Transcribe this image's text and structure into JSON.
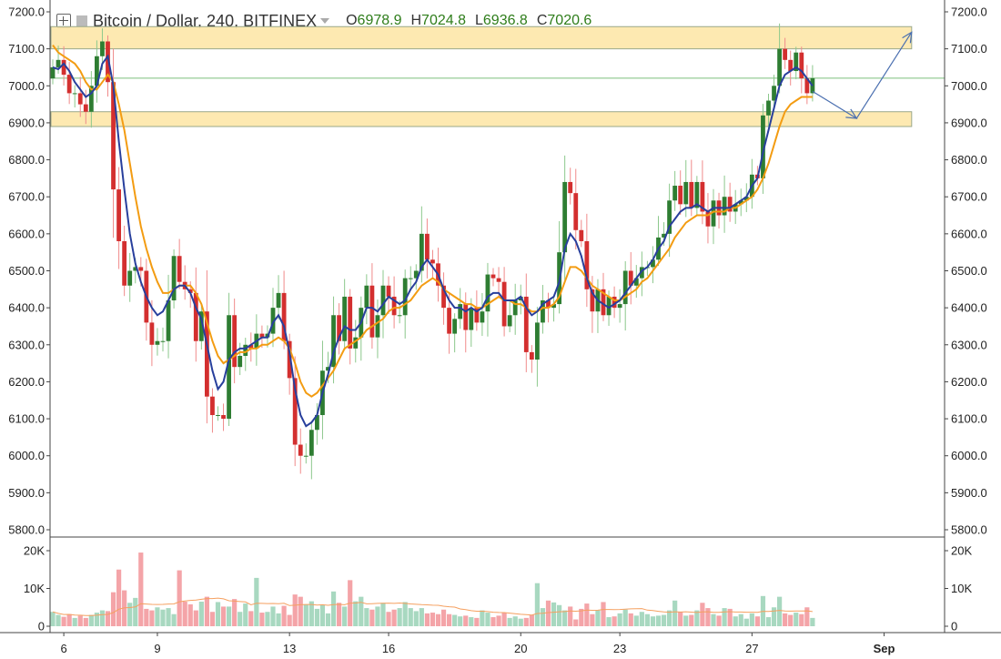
{
  "header": {
    "symbol_title": "Bitcoin / Dollar, 240, BITFINEX",
    "ohlc": [
      {
        "key": "O",
        "value": "6978.9"
      },
      {
        "key": "H",
        "value": "7024.8"
      },
      {
        "key": "L",
        "value": "6936.8"
      },
      {
        "key": "C",
        "value": "7020.6"
      }
    ]
  },
  "colors": {
    "up": "#2e7d32",
    "down": "#d32f2f",
    "ma_fast": "#283f9c",
    "ma_slow": "#f39c12",
    "zone_fill": "#fde7a8",
    "zone_stroke": "#9aa88a",
    "vol_up": "#a8d8c0",
    "vol_down": "#f4a4a8",
    "vol_ma": "#f5a060",
    "arrow": "#4a6fb0",
    "price_line": "#7cbf7c"
  },
  "chart_data": {
    "type": "candlestick",
    "x_tick_labels": [
      {
        "label": "6",
        "bar": 2
      },
      {
        "label": "9",
        "bar": 19
      },
      {
        "label": "13",
        "bar": 43
      },
      {
        "label": "16",
        "bar": 61
      },
      {
        "label": "20",
        "bar": 85
      },
      {
        "label": "23",
        "bar": 103
      },
      {
        "label": "27",
        "bar": 127
      },
      {
        "label": "Sep",
        "bar": 151
      }
    ],
    "price_axis": {
      "min": 5800,
      "max": 7200,
      "ticks": [
        "7200.0",
        "7100.0",
        "7000.0",
        "6900.0",
        "6800.0",
        "6700.0",
        "6600.0",
        "6500.0",
        "6400.0",
        "6300.0",
        "6200.0",
        "6100.0",
        "6000.0",
        "5900.0",
        "5800.0"
      ]
    },
    "volume_axis": {
      "max": 20000,
      "ticks": [
        {
          "label": "20K",
          "v": 20000
        },
        {
          "label": "10K",
          "v": 10000
        },
        {
          "label": "0",
          "v": 0
        }
      ]
    },
    "current_price": 7020.6,
    "zones": [
      {
        "from_bar": 0,
        "to_bar": 156,
        "low": 7100,
        "high": 7160
      },
      {
        "from_bar": 0,
        "to_bar": 156,
        "low": 6890,
        "high": 6930
      }
    ],
    "projection": [
      {
        "bar": 138,
        "price": 6985
      },
      {
        "bar": 146,
        "price": 6912
      },
      {
        "bar": 156,
        "price": 7145
      }
    ],
    "candles": {
      "open": [
        7020,
        7050,
        7070,
        7030,
        6980,
        6980,
        6950,
        6930,
        7000,
        7080,
        7120,
        7010,
        6720,
        6580,
        6460,
        6500,
        6510,
        6500,
        6360,
        6300,
        6310,
        6310,
        6420,
        6540,
        6470,
        6450,
        6440,
        6310,
        6390,
        6160,
        6110,
        6110,
        6100,
        6380,
        6240,
        6270,
        6300,
        6290,
        6330,
        6320,
        6330,
        6400,
        6440,
        6310,
        6210,
        6030,
        6000,
        6000,
        6070,
        6110,
        6230,
        6240,
        6380,
        6310,
        6430,
        6290,
        6320,
        6400,
        6460,
        6320,
        6380,
        6460,
        6430,
        6380,
        6380,
        6480,
        6480,
        6500,
        6600,
        6530,
        6520,
        6460,
        6400,
        6330,
        6370,
        6410,
        6340,
        6400,
        6360,
        6390,
        6490,
        6480,
        6470,
        6350,
        6380,
        6420,
        6430,
        6280,
        6260,
        6360,
        6420,
        6400,
        6410,
        6550,
        6740,
        6710,
        6610,
        6580,
        6450,
        6390,
        6450,
        6380,
        6430,
        6400,
        6410,
        6500,
        6460,
        6480,
        6510,
        6510,
        6530,
        6590,
        6600,
        6690,
        6730,
        6680,
        6740,
        6670,
        6740,
        6660,
        6620,
        6690,
        6650,
        6700,
        6660,
        6680,
        6690,
        6700,
        6760,
        6750,
        6920,
        6960,
        7000,
        7100,
        7070,
        7040,
        7090,
        7020,
        6980
      ],
      "close": [
        7050,
        7070,
        7030,
        6980,
        6980,
        6950,
        6930,
        7000,
        7080,
        7120,
        7010,
        6720,
        6580,
        6460,
        6500,
        6510,
        6500,
        6360,
        6300,
        6310,
        6310,
        6420,
        6540,
        6470,
        6450,
        6440,
        6310,
        6390,
        6160,
        6110,
        6110,
        6100,
        6380,
        6240,
        6270,
        6300,
        6290,
        6330,
        6320,
        6330,
        6400,
        6440,
        6310,
        6210,
        6030,
        6000,
        6000,
        6070,
        6110,
        6230,
        6240,
        6380,
        6310,
        6430,
        6290,
        6320,
        6400,
        6460,
        6320,
        6380,
        6460,
        6430,
        6380,
        6380,
        6480,
        6480,
        6500,
        6600,
        6530,
        6520,
        6460,
        6400,
        6330,
        6370,
        6410,
        6340,
        6400,
        6360,
        6390,
        6490,
        6480,
        6470,
        6350,
        6380,
        6420,
        6430,
        6280,
        6260,
        6360,
        6420,
        6400,
        6410,
        6550,
        6740,
        6710,
        6610,
        6580,
        6450,
        6390,
        6450,
        6380,
        6430,
        6400,
        6410,
        6500,
        6460,
        6480,
        6510,
        6510,
        6530,
        6590,
        6600,
        6690,
        6730,
        6680,
        6740,
        6670,
        6740,
        6660,
        6620,
        6690,
        6650,
        6700,
        6660,
        6680,
        6690,
        6700,
        6760,
        6750,
        6920,
        6960,
        7000,
        7100,
        7070,
        7040,
        7090,
        7020,
        6980,
        7020.6
      ]
    },
    "ma_fast": [
      7050,
      7045,
      7060,
      7040,
      7010,
      6990,
      6970,
      6980,
      7000,
      7060,
      7080,
      7000,
      6850,
      6720,
      6600,
      6520,
      6470,
      6430,
      6400,
      6380,
      6390,
      6420,
      6450,
      6460,
      6460,
      6440,
      6400,
      6370,
      6300,
      6230,
      6180,
      6200,
      6260,
      6280,
      6290,
      6290,
      6300,
      6310,
      6320,
      6320,
      6360,
      6380,
      6350,
      6280,
      6180,
      6110,
      6080,
      6090,
      6110,
      6170,
      6220,
      6280,
      6320,
      6350,
      6340,
      6340,
      6360,
      6400,
      6400,
      6390,
      6410,
      6430,
      6420,
      6410,
      6420,
      6450,
      6470,
      6510,
      6530,
      6510,
      6490,
      6450,
      6420,
      6400,
      6400,
      6390,
      6400,
      6390,
      6400,
      6430,
      6440,
      6440,
      6420,
      6420,
      6420,
      6430,
      6400,
      6380,
      6390,
      6410,
      6420,
      6430,
      6470,
      6560,
      6600,
      6580,
      6540,
      6480,
      6440,
      6420,
      6410,
      6400,
      6410,
      6420,
      6440,
      6460,
      6480,
      6500,
      6510,
      6530,
      6560,
      6580,
      6620,
      6640,
      6660,
      6670,
      6670,
      6680,
      6670,
      6660,
      6670,
      6670,
      6670,
      6670,
      6680,
      6690,
      6700,
      6730,
      6750,
      6820,
      6880,
      6940,
      7000,
      7030,
      7040,
      7050,
      7040,
      7020,
      7000
    ],
    "ma_slow": [
      7110,
      7090,
      7080,
      7070,
      7060,
      7040,
      7010,
      6990,
      6990,
      7010,
      7030,
      7010,
      6950,
      6880,
      6790,
      6700,
      6620,
      6560,
      6510,
      6470,
      6440,
      6440,
      6450,
      6460,
      6460,
      6460,
      6440,
      6410,
      6360,
      6310,
      6270,
      6250,
      6260,
      6270,
      6280,
      6280,
      6290,
      6290,
      6300,
      6300,
      6310,
      6320,
      6310,
      6290,
      6250,
      6200,
      6170,
      6160,
      6170,
      6190,
      6210,
      6230,
      6260,
      6290,
      6300,
      6310,
      6320,
      6340,
      6350,
      6360,
      6370,
      6390,
      6400,
      6400,
      6410,
      6420,
      6440,
      6460,
      6470,
      6480,
      6470,
      6450,
      6440,
      6430,
      6420,
      6410,
      6410,
      6400,
      6400,
      6410,
      6420,
      6430,
      6420,
      6420,
      6410,
      6410,
      6400,
      6390,
      6390,
      6400,
      6400,
      6410,
      6430,
      6470,
      6510,
      6510,
      6500,
      6480,
      6460,
      6450,
      6440,
      6430,
      6420,
      6420,
      6430,
      6440,
      6450,
      6470,
      6480,
      6500,
      6520,
      6540,
      6560,
      6590,
      6610,
      6630,
      6640,
      6650,
      6650,
      6650,
      6660,
      6660,
      6660,
      6670,
      6670,
      6680,
      6690,
      6700,
      6720,
      6750,
      6790,
      6840,
      6890,
      6930,
      6950,
      6960,
      6970,
      6970,
      6970
    ],
    "volume": [
      3800,
      3000,
      2500,
      3200,
      2200,
      2800,
      2200,
      3000,
      3600,
      4200,
      4000,
      9000,
      15000,
      9500,
      6200,
      7500,
      19500,
      4600,
      4200,
      5000,
      4400,
      4800,
      3200,
      14800,
      6500,
      5800,
      4200,
      6500,
      7800,
      3800,
      6400,
      5200,
      5200,
      7200,
      3800,
      6000,
      4000,
      12800,
      3600,
      3800,
      5200,
      3400,
      5400,
      3000,
      8400,
      7800,
      5800,
      6600,
      4600,
      5600,
      3400,
      9200,
      6200,
      5200,
      12200,
      6600,
      7800,
      4800,
      4400,
      5200,
      6200,
      3800,
      4400,
      4800,
      6400,
      4800,
      4000,
      4800,
      3400,
      3600,
      3200,
      4400,
      3200,
      3000,
      2600,
      2800,
      2400,
      2200,
      4200,
      3600,
      2400,
      2800,
      3600,
      2200,
      2600,
      2000,
      2200,
      3000,
      11400,
      4800,
      6800,
      6300,
      5600,
      4200,
      5200,
      1800,
      4600,
      6000,
      3200,
      4200,
      6400,
      2400,
      2600,
      3400,
      4400,
      3400,
      2800,
      3800,
      3200,
      2600,
      2800,
      3000,
      4200,
      6800,
      3800,
      2800,
      3000,
      4200,
      6200,
      4800,
      3200,
      2800,
      4800,
      4600,
      2600,
      3200,
      2000,
      3400,
      2600,
      8000,
      2400,
      5000,
      7800,
      3400,
      3000,
      3600,
      3200,
      5000,
      2200
    ]
  }
}
